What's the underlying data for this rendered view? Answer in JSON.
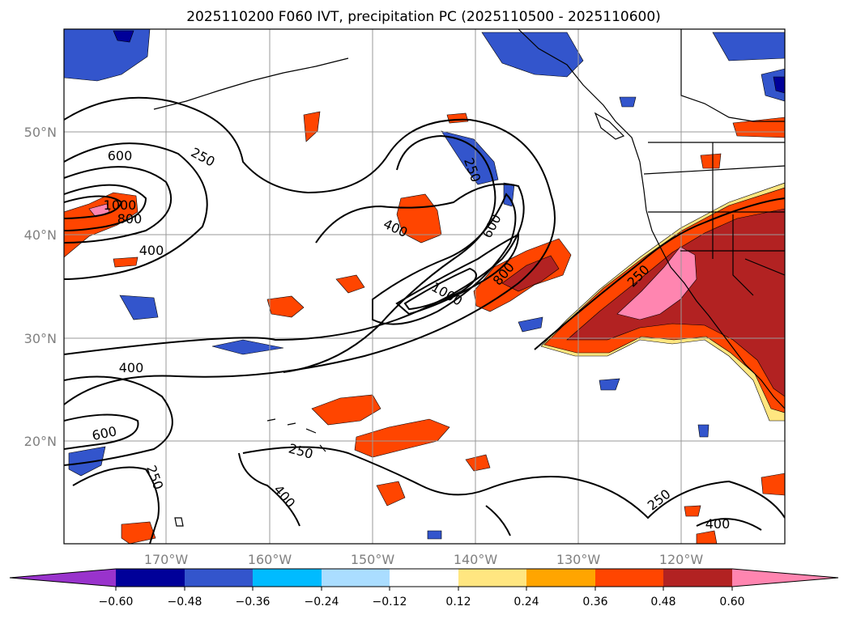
{
  "title": "2025110200 F060 IVT, precipitation PC (2025110500 - 2025110600)",
  "map": {
    "lat_labels": [
      "50°N",
      "40°N",
      "30°N",
      "20°N"
    ],
    "lon_labels": [
      "170°W",
      "160°W",
      "150°W",
      "140°W",
      "130°W",
      "120°W"
    ],
    "contour_labels": [
      "250",
      "600",
      "1000",
      "800",
      "400",
      "250",
      "400",
      "600",
      "800",
      "1000",
      "250",
      "400",
      "600",
      "250",
      "250",
      "400",
      "250",
      "400"
    ],
    "contour_color": "#000000",
    "coast_color": "#000000",
    "grid": true
  },
  "colorbar": {
    "ticks": [
      "−0.60",
      "−0.48",
      "−0.36",
      "−0.24",
      "−0.12",
      "0.12",
      "0.24",
      "0.36",
      "0.48",
      "0.60"
    ],
    "colors": [
      "#9933cc",
      "#000099",
      "#3355cc",
      "#00bbff",
      "#aaddff",
      "#ffffff",
      "#ffe680",
      "#ffa500",
      "#ff4500",
      "#b22222",
      "#ff85b0",
      "#ff85b0"
    ]
  }
}
